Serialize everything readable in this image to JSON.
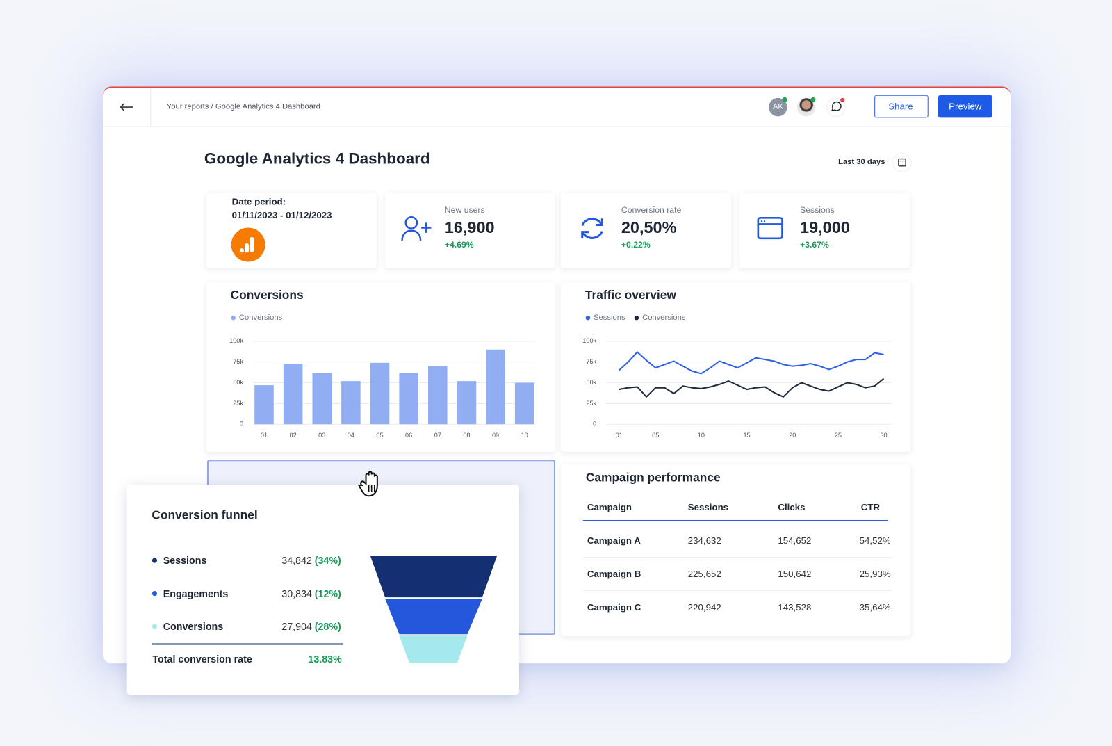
{
  "header": {
    "breadcrumb": "Your reports / Google Analytics 4 Dashboard",
    "avatar_initials": "AK",
    "share": "Share",
    "preview": "Preview"
  },
  "dashboard": {
    "title": "Google Analytics 4 Dashboard",
    "date_range": "Last 30 days"
  },
  "kpis": {
    "date_period_label": "Date period:",
    "date_period": "01/11/2023 - 01/12/2023",
    "cards": [
      {
        "label": "New users",
        "value": "16,900",
        "change": "+4.69%"
      },
      {
        "label": "Conversion rate",
        "value": "20,50%",
        "change": "+0.22%"
      },
      {
        "label": "Sessions",
        "value": "19,000",
        "change": "+3.67%"
      }
    ]
  },
  "chart_data": [
    {
      "type": "bar",
      "title": "Conversions",
      "categories": [
        "01",
        "02",
        "03",
        "04",
        "05",
        "06",
        "07",
        "08",
        "09",
        "10"
      ],
      "series": [
        {
          "name": "Conversions",
          "color": "#92aef2",
          "values": [
            47000,
            73000,
            62000,
            52000,
            74000,
            62000,
            70000,
            52000,
            90000,
            50000
          ]
        }
      ],
      "ylim": [
        0,
        100000
      ],
      "yticks": [
        0,
        {
          "value": 25000,
          "label": "25k"
        },
        {
          "value": 50000,
          "label": "50k"
        },
        {
          "value": 75000,
          "label": "75k"
        },
        {
          "value": 100000,
          "label": "100k"
        }
      ],
      "grid": true
    },
    {
      "type": "line",
      "title": "Traffic overview",
      "x": [
        1,
        2,
        3,
        4,
        5,
        6,
        7,
        8,
        9,
        10,
        11,
        12,
        13,
        14,
        15,
        16,
        17,
        18,
        19,
        20,
        21,
        22,
        23,
        24,
        25,
        26,
        27,
        28,
        29,
        30
      ],
      "series": [
        {
          "name": "Sessions",
          "color": "#2f62e3",
          "values": [
            65000,
            75000,
            87000,
            77000,
            68000,
            72000,
            76000,
            70000,
            64000,
            61000,
            68000,
            76000,
            72000,
            68000,
            74000,
            80000,
            78000,
            76000,
            72000,
            70000,
            71000,
            73000,
            70000,
            66000,
            70000,
            75000,
            78000,
            78000,
            86000,
            84000
          ]
        },
        {
          "name": "Conversions",
          "color": "#1f2a3a",
          "values": [
            42000,
            44000,
            45000,
            33000,
            44000,
            44000,
            37000,
            46000,
            44000,
            43000,
            45000,
            48000,
            52000,
            47000,
            42000,
            44000,
            45000,
            38000,
            33000,
            44000,
            50000,
            46000,
            42000,
            40000,
            45000,
            50000,
            48000,
            44000,
            46000,
            55000
          ]
        }
      ],
      "xlim": [
        0,
        31
      ],
      "xticks": [
        {
          "value": 1,
          "label": "01"
        },
        {
          "value": 5,
          "label": "05"
        },
        10,
        15,
        20,
        25,
        30
      ],
      "ylim": [
        0,
        100000
      ],
      "yticks": [
        0,
        {
          "value": 25000,
          "label": "25k"
        },
        {
          "value": 50000,
          "label": "50k"
        },
        {
          "value": 75000,
          "label": "75k"
        },
        {
          "value": 100000,
          "label": "100k"
        }
      ],
      "grid": true
    }
  ],
  "funnel": {
    "title": "Conversion funnel",
    "rows": [
      {
        "label": "Sessions",
        "value": "34,842",
        "share": "(34%)",
        "color": "#142f72"
      },
      {
        "label": "Engagements",
        "value": "30,834",
        "share": "(12%)",
        "color": "#2457db"
      },
      {
        "label": "Conversions",
        "value": "27,904",
        "share": "(28%)",
        "color": "#a6e9ec"
      }
    ],
    "total_label": "Total conversion rate",
    "total_value": "13.83%"
  },
  "campaign_table": {
    "title": "Campaign performance",
    "header": [
      "Campaign",
      "Sessions",
      "Clicks",
      "CTR"
    ],
    "rows": [
      [
        "Campaign A",
        "234,632",
        "154,652",
        "54,52%"
      ],
      [
        "Campaign B",
        "225,652",
        "150,642",
        "25,93%"
      ],
      [
        "Campaign C",
        "220,942",
        "143,528",
        "35,64%"
      ]
    ]
  }
}
